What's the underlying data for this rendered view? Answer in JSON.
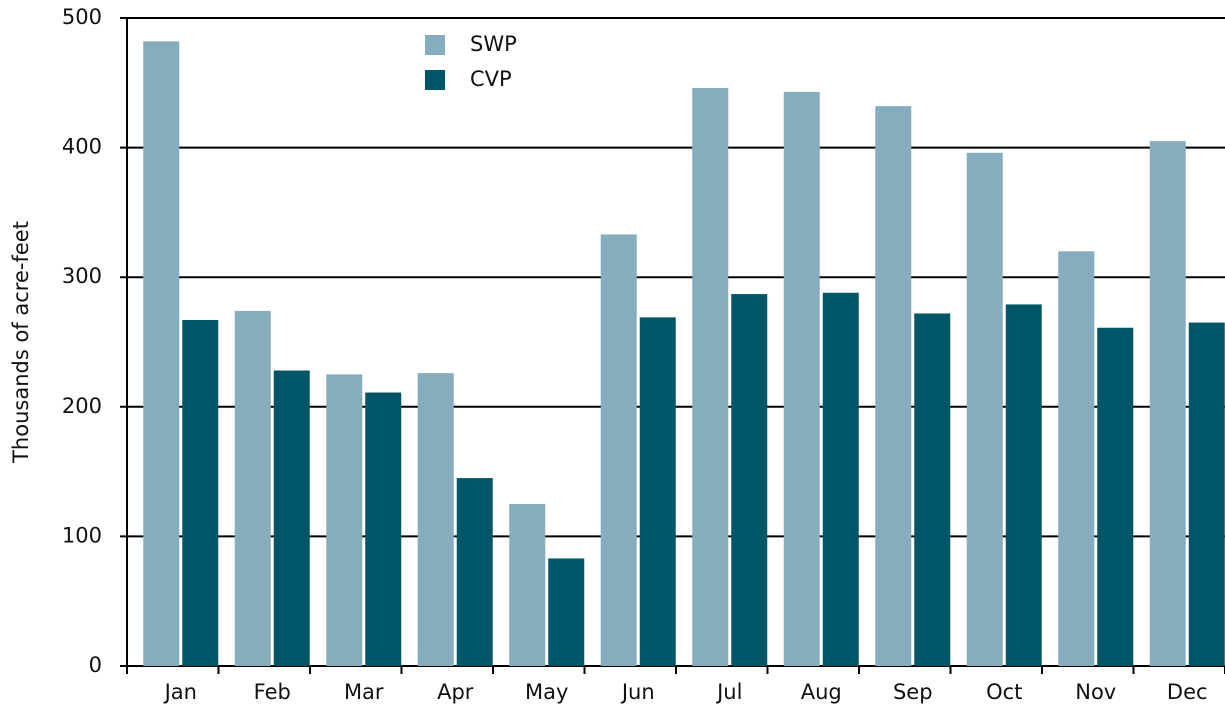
{
  "chart_data": {
    "type": "bar",
    "y_label": "Thousands of acre-feet",
    "categories": [
      "Jan",
      "Feb",
      "Mar",
      "Apr",
      "May",
      "Jun",
      "Jul",
      "Aug",
      "Sep",
      "Oct",
      "Nov",
      "Dec"
    ],
    "series": [
      {
        "name": "SWP",
        "color": "#86adbd",
        "values": [
          482,
          274,
          225,
          226,
          125,
          333,
          446,
          443,
          432,
          396,
          320,
          405
        ]
      },
      {
        "name": "CVP",
        "color": "#005566",
        "values": [
          267,
          228,
          211,
          145,
          83,
          269,
          287,
          288,
          272,
          279,
          261,
          265
        ]
      }
    ],
    "ylim": [
      0,
      500
    ],
    "yticks": [
      0,
      100,
      200,
      300,
      400,
      500
    ],
    "grid": true
  }
}
